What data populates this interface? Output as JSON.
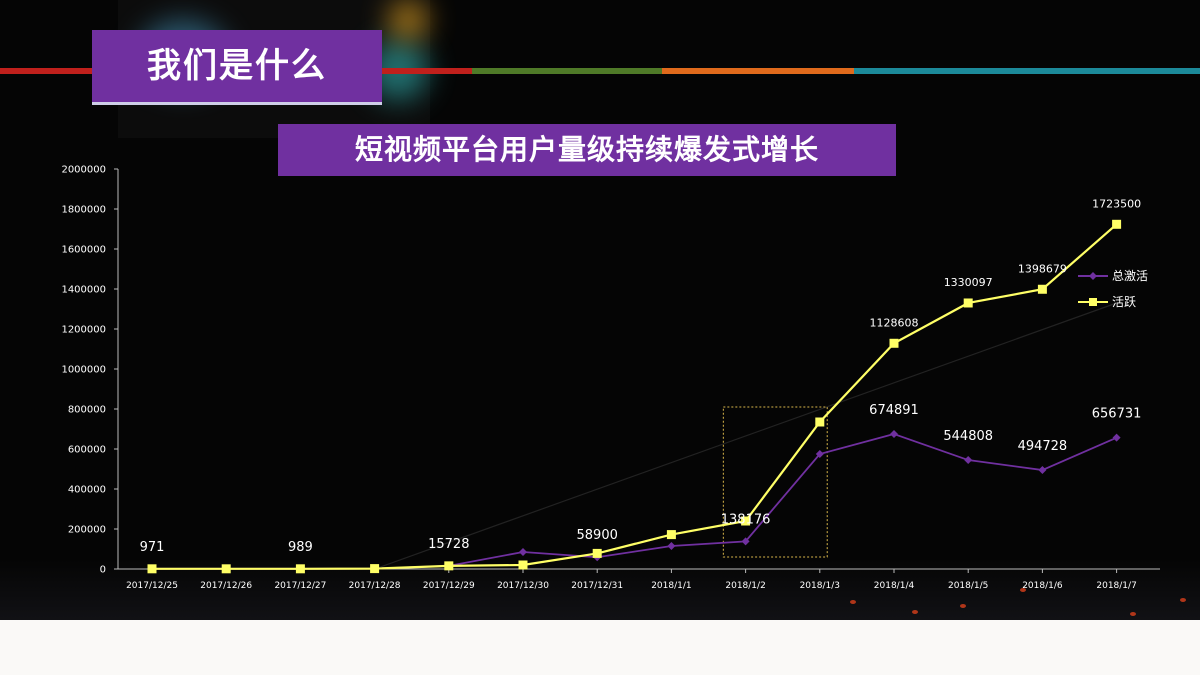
{
  "slide": {
    "title": "我们是什么",
    "subtitle": "短视频平台用户量级持续爆发式增长"
  },
  "colors": {
    "accent_purple": "#7030a0",
    "series_total": "#7030a0",
    "series_active": "#ffff66",
    "stripe_red": "#c0201c",
    "stripe_green": "#4f7a28",
    "stripe_orange": "#e06a1c",
    "stripe_teal": "#1c8a9a"
  },
  "chart_data": {
    "type": "line",
    "title": "",
    "xlabel": "",
    "ylabel": "",
    "ylim": [
      0,
      2000000
    ],
    "yticks": [
      "0",
      "200000",
      "400000",
      "600000",
      "800000",
      "1000000",
      "1200000",
      "1400000",
      "1600000",
      "1800000",
      "2000000"
    ],
    "categories": [
      "2017/12/25",
      "2017/12/26",
      "2017/12/27",
      "2017/12/28",
      "2017/12/29",
      "2017/12/30",
      "2017/12/31",
      "2018/1/1",
      "2018/1/2",
      "2018/1/3",
      "2018/1/4",
      "2018/1/5",
      "2018/1/6",
      "2018/1/7"
    ],
    "series": [
      {
        "name": "总激活",
        "marker": "diamond",
        "values": [
          971,
          980,
          989,
          2000,
          15728,
          85000,
          58900,
          115000,
          138176,
          575000,
          674891,
          544808,
          494728,
          656731
        ]
      },
      {
        "name": "活跃",
        "marker": "square",
        "values": [
          971,
          980,
          989,
          2000,
          15728,
          20000,
          78000,
          172000,
          240000,
          735000,
          1128608,
          1330097,
          1398679,
          1723500
        ]
      }
    ],
    "data_labels": [
      {
        "index": 0,
        "series": 0,
        "text": "971"
      },
      {
        "index": 2,
        "series": 0,
        "text": "989"
      },
      {
        "index": 4,
        "series": 0,
        "text": "15728"
      },
      {
        "index": 6,
        "series": 0,
        "text": "58900"
      },
      {
        "index": 8,
        "series": 0,
        "text": "138176"
      },
      {
        "index": 10,
        "series": 0,
        "text": "674891"
      },
      {
        "index": 11,
        "series": 0,
        "text": "544808"
      },
      {
        "index": 12,
        "series": 0,
        "text": "494728"
      },
      {
        "index": 13,
        "series": 0,
        "text": "656731"
      },
      {
        "index": 10,
        "series": 1,
        "text": "1128608"
      },
      {
        "index": 11,
        "series": 1,
        "text": "1330097"
      },
      {
        "index": 12,
        "series": 1,
        "text": "1398679"
      },
      {
        "index": 13,
        "series": 1,
        "text": "1723500"
      }
    ],
    "trendline": {
      "from": [
        3,
        0
      ],
      "to": [
        13,
        1330000
      ]
    },
    "highlight_box": {
      "from_index": 7.7,
      "to_index": 9.1,
      "y_from": 60000,
      "y_to": 810000
    },
    "legend": "right",
    "grid": false
  }
}
